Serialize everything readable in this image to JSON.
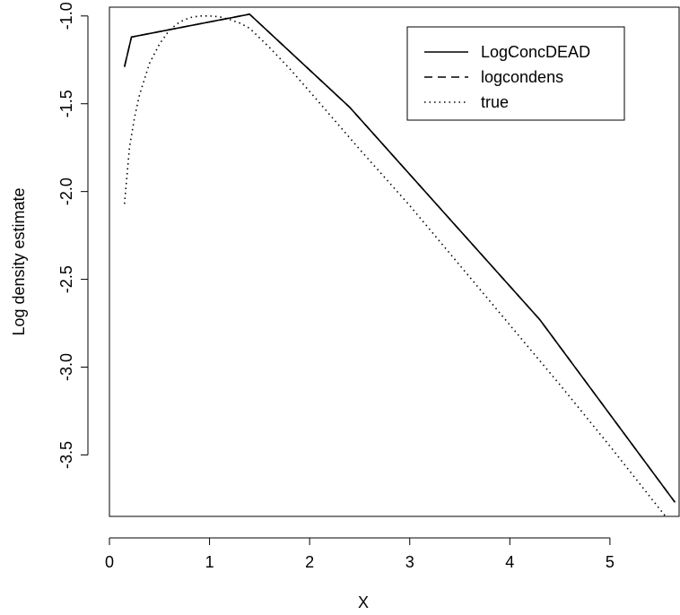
{
  "chart_data": {
    "type": "line",
    "title": "",
    "xlabel": "X",
    "ylabel": "Log density estimate",
    "xlim": [
      0,
      5.7
    ],
    "ylim": [
      -3.85,
      -0.95
    ],
    "x_ticks": [
      0,
      1,
      2,
      3,
      4,
      5
    ],
    "x_tick_labels": [
      "0",
      "1",
      "2",
      "3",
      "4",
      "5"
    ],
    "y_ticks": [
      -1.0,
      -1.5,
      -2.0,
      -2.5,
      -3.0,
      -3.5
    ],
    "y_tick_labels": [
      "-1.0",
      "-1.5",
      "-2.0",
      "-2.5",
      "-3.0",
      "-3.5"
    ],
    "grid": false,
    "legend_position": "top-right",
    "series": [
      {
        "name": "LogConcDEAD",
        "style": "solid",
        "x": [
          0.15,
          0.22,
          1.4,
          2.4,
          4.3,
          5.65
        ],
        "y": [
          -1.29,
          -1.12,
          -0.99,
          -1.52,
          -2.73,
          -3.77
        ]
      },
      {
        "name": "logcondens",
        "style": "dashed",
        "x": [
          0.15,
          0.22,
          1.4,
          2.4,
          4.3,
          5.65
        ],
        "y": [
          -1.29,
          -1.12,
          -0.99,
          -1.52,
          -2.73,
          -3.77
        ]
      },
      {
        "name": "true",
        "style": "dotted",
        "x": [
          0.15,
          0.2,
          0.25,
          0.3,
          0.4,
          0.5,
          0.6,
          0.7,
          0.8,
          0.9,
          1.0,
          1.1,
          1.2,
          1.3,
          1.4,
          1.6,
          1.8,
          2.0,
          2.5,
          3.0,
          3.5,
          4.0,
          4.5,
          5.0,
          5.5,
          5.57
        ],
        "y": [
          -2.07,
          -1.75,
          -1.58,
          -1.45,
          -1.27,
          -1.16,
          -1.08,
          -1.035,
          -1.01,
          -1.0,
          -1.0,
          -1.005,
          -1.02,
          -1.04,
          -1.07,
          -1.18,
          -1.3,
          -1.43,
          -1.76,
          -2.08,
          -2.42,
          -2.76,
          -3.1,
          -3.45,
          -3.81,
          -3.86
        ]
      }
    ]
  }
}
